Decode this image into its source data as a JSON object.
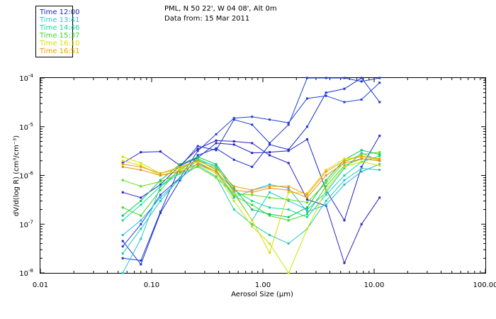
{
  "header": {
    "location": "PML, N 50 22', W 04 08', Alt 0m",
    "date": "Data from: 15 Mar 2011"
  },
  "chart_data": {
    "type": "line",
    "title": "PML, N 50 22', W 04 08', Alt 0m",
    "subtitle": "Data from: 15 Mar 2011",
    "xlabel": "Aerosol Size (μm)",
    "ylabel": "dV/d(log R) (cm³/cm⁻³)",
    "xscale": "log",
    "yscale": "log",
    "xlim": [
      0.01,
      100.0
    ],
    "ylim": [
      1e-08,
      0.0001
    ],
    "xticks": [
      {
        "value": 0.01,
        "label": "0.01"
      },
      {
        "value": 0.1,
        "label": "0.10"
      },
      {
        "value": 1.0,
        "label": "1.00"
      },
      {
        "value": 10.0,
        "label": "10.00"
      },
      {
        "value": 100.0,
        "label": "100.00"
      }
    ],
    "yticks": [
      {
        "value": 1e-08,
        "base": "10",
        "exp": "-8"
      },
      {
        "value": 1e-07,
        "base": "10",
        "exp": "-7"
      },
      {
        "value": 1e-06,
        "base": "10",
        "exp": "-6"
      },
      {
        "value": 1e-05,
        "base": "10",
        "exp": "-5"
      },
      {
        "value": 0.0001,
        "base": "10",
        "exp": "-4"
      }
    ],
    "legend_position": "top-left",
    "x": [
      0.055,
      0.08,
      0.12,
      0.18,
      0.26,
      0.38,
      0.55,
      0.8,
      1.15,
      1.7,
      2.5,
      3.7,
      5.4,
      7.7,
      11.2
    ],
    "series": [
      {
        "name": "Time 12:00",
        "color": "#1e22c8",
        "values": [
          1.8e-06,
          3e-06,
          3.1e-06,
          1.6e-06,
          2.3e-06,
          4.6e-06,
          4.3e-06,
          2.9e-06,
          3e-06,
          3.2e-06,
          5.5e-06,
          5e-07,
          1.2e-07,
          1.5e-06,
          6.5e-06
        ]
      },
      {
        "name": "Time 12:00",
        "color": "#1830d8",
        "values": [
          4.5e-08,
          1.5e-08,
          1.7e-07,
          8e-07,
          2.6e-06,
          3.6e-06,
          2.1e-06,
          1.5e-06,
          4.3e-06,
          3.4e-06,
          1e-05,
          5e-05,
          6e-05,
          0.0001,
          3.2e-05
        ]
      },
      {
        "name": "Time 12:00",
        "color": "#2040e0",
        "values": [
          3.5e-08,
          1e-07,
          4e-07,
          9e-07,
          3.2e-06,
          7e-06,
          1.5e-05,
          1.6e-05,
          1.4e-05,
          1.2e-05,
          3.8e-05,
          4.3e-05,
          3.2e-05,
          3.6e-05,
          8e-05
        ]
      },
      {
        "name": "Time 12:00",
        "color": "#3020c0",
        "values": [
          4.5e-07,
          3.5e-07,
          6.5e-07,
          1.6e-06,
          3.5e-06,
          5.2e-06,
          5e-06,
          4.6e-06,
          2.6e-06,
          1.8e-06,
          3.2e-07,
          2.4e-07,
          1.6e-08,
          1e-07,
          3.5e-07
        ]
      },
      {
        "name": "Time 12:00",
        "color": "#1c3cc8",
        "values": [
          2e-08,
          1.8e-08,
          1.8e-07,
          1.5e-06,
          4e-06,
          3.3e-06,
          1.4e-05,
          1.1e-05,
          4.6e-06,
          1.1e-05,
          0.0001,
          0.00012,
          0.00011,
          8.5e-05,
          0.00012
        ]
      },
      {
        "name": "Time 13:41",
        "color": "#1ec8dc",
        "values": [
          1e-08,
          5e-08,
          6e-07,
          1.1e-06,
          2e-06,
          1.6e-06,
          4.5e-07,
          1.2e-07,
          4.5e-07,
          3e-07,
          2e-07,
          4.5e-07,
          1.4e-06,
          2.9e-06,
          2e-06
        ]
      },
      {
        "name": "Time 13:41",
        "color": "#28b4e6",
        "values": [
          6e-08,
          1.2e-07,
          3.5e-07,
          8.5e-07,
          1.8e-06,
          1.2e-06,
          3.5e-07,
          5e-07,
          6.5e-07,
          5.5e-07,
          1.8e-07,
          2.5e-07,
          6.5e-07,
          1.2e-06,
          1.7e-06
        ]
      },
      {
        "name": "Time 14:46",
        "color": "#14d8a0",
        "values": [
          1.2e-07,
          2.5e-07,
          6e-07,
          1.3e-06,
          2.2e-06,
          1.5e-06,
          5e-07,
          3e-07,
          2.2e-07,
          2e-07,
          1.4e-07,
          4e-07,
          1e-06,
          1.9e-06,
          2.5e-06
        ]
      },
      {
        "name": "Time 14:46",
        "color": "#20c8b4",
        "values": [
          2.5e-08,
          8e-08,
          3e-07,
          9e-07,
          1.6e-06,
          9.5e-07,
          2e-07,
          1e-07,
          6e-08,
          4e-08,
          8e-08,
          3e-07,
          8e-07,
          1.4e-06,
          1.3e-06
        ]
      },
      {
        "name": "Time 15:37",
        "color": "#3cd828",
        "values": [
          2.2e-07,
          1.5e-07,
          5e-07,
          1.4e-06,
          2.1e-06,
          1.3e-06,
          3.8e-07,
          2.5e-07,
          1.5e-07,
          1.2e-07,
          1.6e-07,
          6e-07,
          1.6e-06,
          2.2e-06,
          2e-06
        ]
      },
      {
        "name": "Time 15:37",
        "color": "#60e010",
        "values": [
          8e-07,
          6e-07,
          7.5e-07,
          1.1e-06,
          1.5e-06,
          9e-07,
          4.2e-07,
          4e-07,
          3.5e-07,
          3.2e-07,
          2.8e-07,
          7e-07,
          1.9e-06,
          2.7e-06,
          3e-06
        ]
      },
      {
        "name": "Time 15:37",
        "color": "#00c850",
        "values": [
          1.5e-07,
          3e-07,
          8e-07,
          1.7e-06,
          2.4e-06,
          1.7e-06,
          5.5e-07,
          2e-07,
          1.6e-07,
          1.4e-07,
          2.2e-07,
          8e-07,
          2.1e-06,
          3.3e-06,
          2.7e-06
        ]
      },
      {
        "name": "Time 16:10",
        "color": "#dcdc00",
        "values": [
          2.4e-06,
          1.8e-06,
          1.1e-06,
          1.4e-06,
          1.9e-06,
          1.2e-06,
          4.2e-07,
          1.2e-07,
          2.6e-08,
          4.5e-07,
          4.3e-07,
          1.3e-06,
          2.2e-06,
          2.4e-06,
          2.1e-06
        ]
      },
      {
        "name": "Time 16:10",
        "color": "#c8e600",
        "values": [
          2e-06,
          1.6e-06,
          1e-06,
          1.3e-06,
          1.7e-06,
          1.1e-06,
          3e-07,
          9e-08,
          4e-08,
          1e-08,
          8e-08,
          5e-07,
          1.5e-06,
          1.9e-06,
          1.6e-06
        ]
      },
      {
        "name": "Time 16:51",
        "color": "#f0a000",
        "values": [
          1.7e-06,
          1.5e-06,
          1.1e-06,
          1.5e-06,
          2e-06,
          1.4e-06,
          6e-07,
          5e-07,
          6e-07,
          6e-07,
          4e-07,
          1.2e-06,
          2e-06,
          2.5e-06,
          2.2e-06
        ]
      },
      {
        "name": "Time 16:51",
        "color": "#e68c14",
        "values": [
          1.5e-06,
          1.3e-06,
          1e-06,
          1.2e-06,
          1.7e-06,
          1.2e-06,
          5e-07,
          4.5e-07,
          5.5e-07,
          5e-07,
          3.5e-07,
          1e-06,
          1.8e-06,
          2.2e-06,
          2e-06
        ]
      }
    ],
    "legend": [
      {
        "label": "Time 12:00",
        "color": "#1e22c8"
      },
      {
        "label": "Time 13:41",
        "color": "#1ec8dc"
      },
      {
        "label": "Time 14:46",
        "color": "#14d8a0"
      },
      {
        "label": "Time 15:37",
        "color": "#3cd828"
      },
      {
        "label": "Time 16:10",
        "color": "#dcdc00"
      },
      {
        "label": "Time 16:51",
        "color": "#f0a000"
      }
    ]
  }
}
